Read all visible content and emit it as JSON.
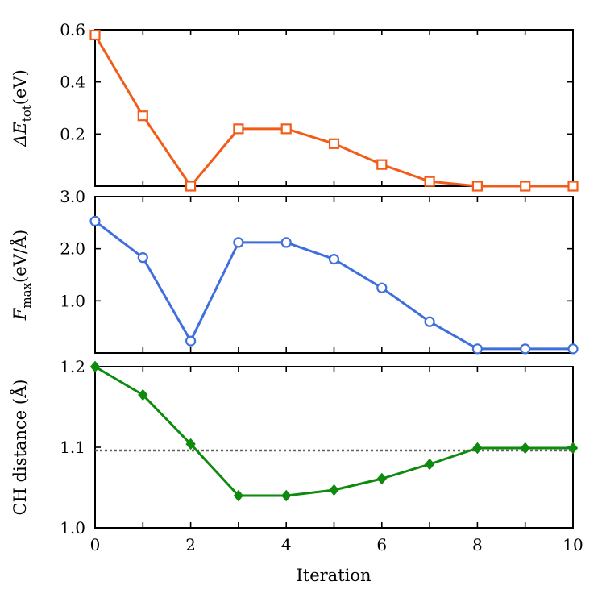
{
  "chart_data": [
    {
      "type": "line",
      "ylabel": {
        "prefix": "ΔE",
        "sub": "tot",
        "unit": "(eV)"
      },
      "x": [
        0,
        1,
        2,
        3,
        4,
        5,
        6,
        7,
        8,
        9,
        10
      ],
      "xlim": [
        0,
        10
      ],
      "ylim": [
        0,
        0.6
      ],
      "yticks": [
        0.2,
        0.4,
        0.6
      ],
      "ytick_labels": [
        "0.2",
        "0.4",
        "0.6"
      ],
      "series": [
        {
          "marker": "square",
          "color": "#f25c19",
          "values": [
            0.58,
            0.27,
            0.0,
            0.22,
            0.22,
            0.163,
            0.083,
            0.018,
            0.0,
            0.0,
            0.0
          ]
        }
      ],
      "grid": false
    },
    {
      "type": "line",
      "ylabel": {
        "prefix": "F",
        "sub": "max",
        "unit": "(eV/Å)"
      },
      "x": [
        0,
        1,
        2,
        3,
        4,
        5,
        6,
        7,
        8,
        9,
        10
      ],
      "xlim": [
        0,
        10
      ],
      "ylim": [
        0,
        3.0
      ],
      "yticks": [
        1.0,
        2.0,
        3.0
      ],
      "ytick_labels": [
        "1.0",
        "2.0",
        "3.0"
      ],
      "series": [
        {
          "marker": "circle",
          "color": "#3f6fdc",
          "values": [
            2.53,
            1.83,
            0.23,
            2.12,
            2.12,
            1.8,
            1.25,
            0.6,
            0.08,
            0.08,
            0.08
          ]
        }
      ],
      "grid": false
    },
    {
      "type": "line",
      "ylabel": {
        "text": "CH distance (Å)"
      },
      "x": [
        0,
        1,
        2,
        3,
        4,
        5,
        6,
        7,
        8,
        9,
        10
      ],
      "xlim": [
        0,
        10
      ],
      "ylim": [
        1.0,
        1.2
      ],
      "yticks": [
        1.0,
        1.1,
        1.2
      ],
      "ytick_labels": [
        "1.0",
        "1.1",
        "1.2"
      ],
      "series": [
        {
          "marker": "diamond",
          "color": "#0e8a0e",
          "values": [
            1.2,
            1.165,
            1.104,
            1.04,
            1.04,
            1.047,
            1.061,
            1.079,
            1.099,
            1.099,
            1.099
          ]
        }
      ],
      "reference_line": {
        "y": 1.096,
        "color": "#606060",
        "style": "dotted"
      },
      "xlabel": "Iteration",
      "xticks": [
        0,
        2,
        4,
        6,
        8,
        10
      ],
      "xtick_labels": [
        "0",
        "2",
        "4",
        "6",
        "8",
        "10"
      ],
      "grid": false
    }
  ]
}
